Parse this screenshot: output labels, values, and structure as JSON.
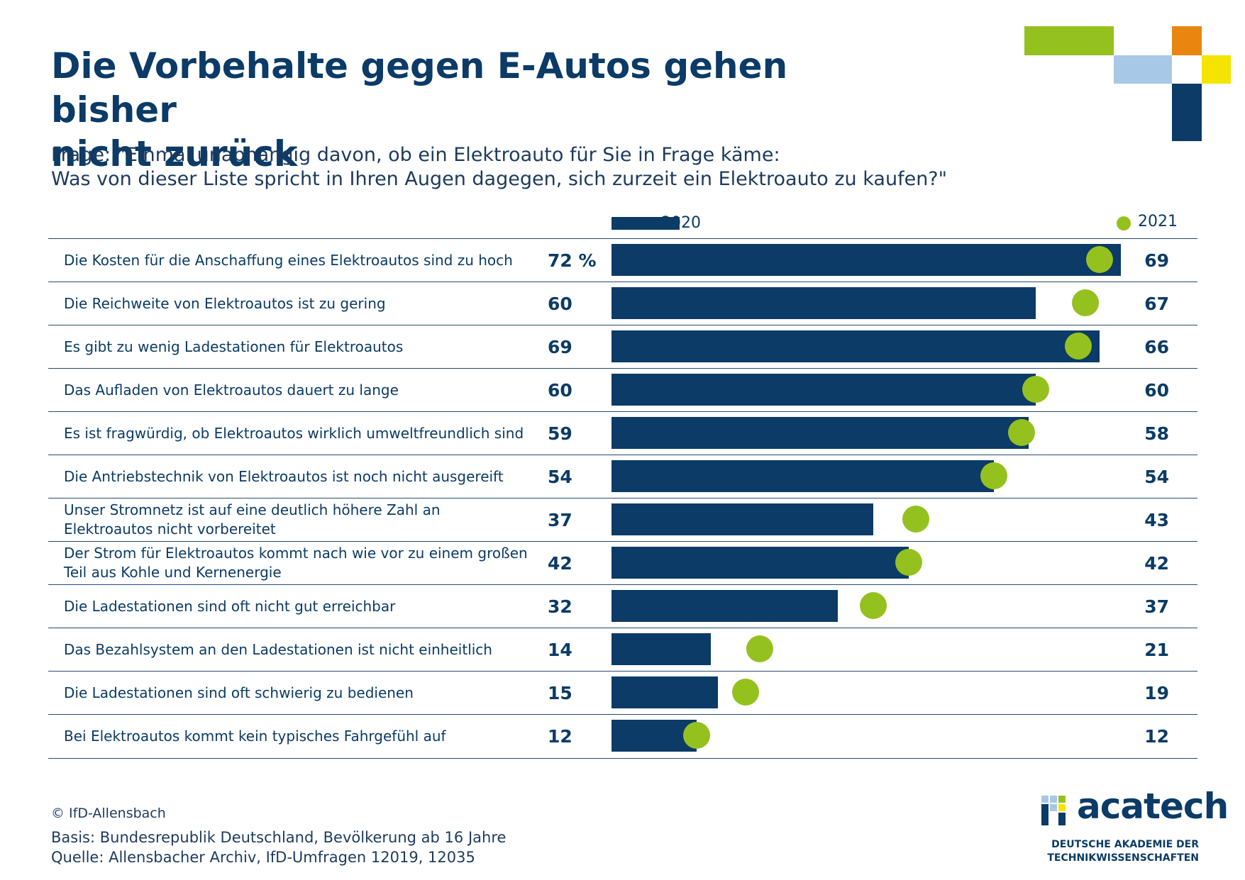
{
  "title": {
    "line1": "Die Vorbehalte gegen E-Autos gehen bisher",
    "line2": "nicht zurück"
  },
  "question": {
    "line1": "Frage: \"Einmal unabhängig davon, ob ein Elektroauto für Sie in Frage käme:",
    "line2": "Was von dieser Liste spricht in Ihren Augen dagegen, sich zurzeit ein Elektroauto zu kaufen?\""
  },
  "colors": {
    "bar_2020": "#0b3b66",
    "dot_2021": "#95c11f",
    "text": "#0b3b66",
    "deco_green": "#95c11f",
    "deco_lightblue": "#a7c8e6",
    "deco_orange": "#e8860f",
    "deco_yellow": "#f5e400",
    "deco_navy": "#0b3b66"
  },
  "chart_data": {
    "type": "bar",
    "orientation": "horizontal",
    "unit": "%",
    "xlim": [
      0,
      72
    ],
    "legend": {
      "placement": "top",
      "entries": [
        "2020",
        "2021"
      ]
    },
    "grid": false,
    "categories": [
      "Die Kosten für die Anschaffung eines Elektroautos sind zu hoch",
      "Die Reichweite von Elektroautos ist zu gering",
      "Es gibt zu wenig Ladestationen für Elektroautos",
      "Das Aufladen von Elektroautos dauert zu lange",
      "Es ist fragwürdig, ob Elektroautos wirklich umweltfreundlich sind",
      "Die Antriebstechnik von Elektroautos ist noch nicht ausgereift",
      "Unser Stromnetz ist auf eine deutlich höhere Zahl an Elektroautos nicht vorbereitet",
      "Der Strom für Elektroautos kommt nach wie vor zu einem großen Teil aus Kohle und Kernenergie",
      "Die Ladestationen sind oft nicht gut erreichbar",
      "Das Bezahlsystem an den Ladestationen ist nicht einheitlich",
      "Die Ladestationen sind oft schwierig zu bedienen",
      "Bei Elektroautos kommt kein typisches Fahrgefühl auf"
    ],
    "series": [
      {
        "name": "2020",
        "mark": "bar",
        "values": [
          72,
          60,
          69,
          60,
          59,
          54,
          37,
          42,
          32,
          14,
          15,
          12
        ]
      },
      {
        "name": "2021",
        "mark": "dot",
        "values": [
          69,
          67,
          66,
          60,
          58,
          54,
          43,
          42,
          37,
          21,
          19,
          12
        ]
      }
    ],
    "value_labels_2020": [
      "72 %",
      "60",
      "69",
      "60",
      "59",
      "54",
      "37",
      "42",
      "32",
      "14",
      "15",
      "12"
    ],
    "value_labels_2021": [
      "69",
      "67",
      "66",
      "60",
      "58",
      "54",
      "43",
      "42",
      "37",
      "21",
      "19",
      "12"
    ]
  },
  "footer": {
    "copyright": "© IfD-Allensbach",
    "basis": "Basis: Bundesrepublik Deutschland, Bevölkerung ab 16 Jahre",
    "quelle": "Quelle: Allensbacher Archiv, IfD-Umfragen 12019, 12035"
  },
  "logo": {
    "name": "acatech",
    "sub1": "DEUTSCHE AKADEMIE DER",
    "sub2": "TECHNIKWISSENSCHAFTEN"
  }
}
